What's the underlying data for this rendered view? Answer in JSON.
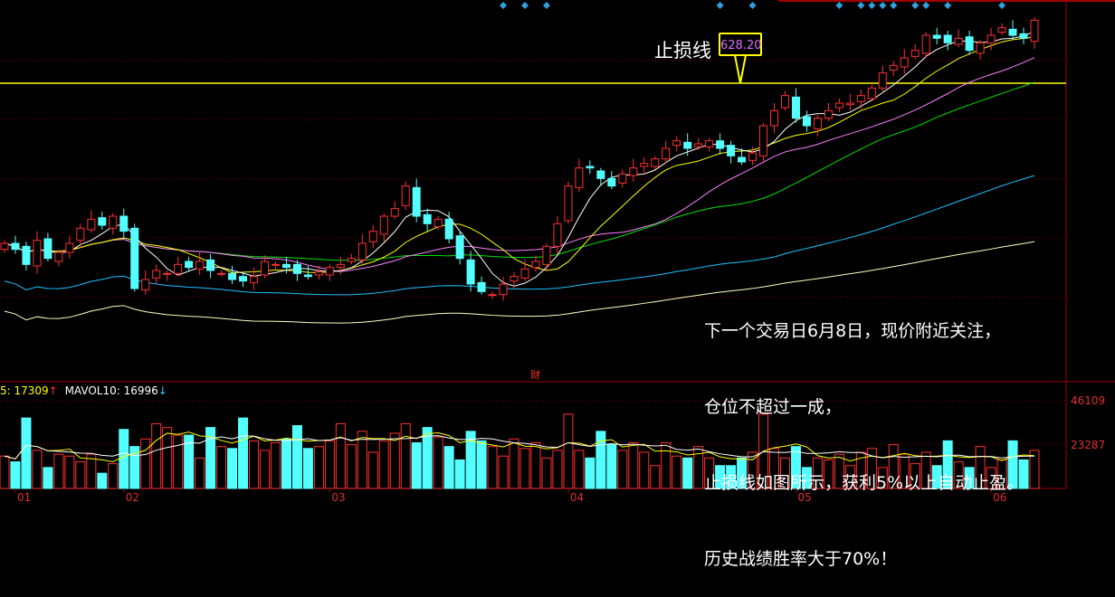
{
  "chart_data": {
    "type": "candlestick",
    "stop_loss": {
      "label": "止损线",
      "value": "628.20",
      "price": 628.2
    },
    "closes": [
      522,
      518,
      508,
      524,
      512,
      516,
      522,
      532,
      538,
      534,
      540,
      530,
      492,
      498,
      504,
      502,
      508,
      506,
      510,
      504,
      502,
      498,
      497,
      500,
      510,
      508,
      506,
      502,
      500,
      503,
      506,
      508,
      512,
      522,
      530,
      540,
      545,
      560,
      540,
      535,
      538,
      525,
      512,
      495,
      490,
      488,
      495,
      500,
      505,
      510,
      520,
      535,
      560,
      572,
      572,
      565,
      560,
      568,
      572,
      575,
      578,
      585,
      590,
      585,
      588,
      590,
      585,
      580,
      576,
      582,
      600,
      610,
      620,
      605,
      600,
      605,
      610,
      615,
      615,
      620,
      625,
      635,
      640,
      645,
      650,
      660,
      658,
      655,
      658,
      650,
      655,
      660,
      665,
      660,
      658,
      670
    ],
    "volumes": [
      17000,
      14000,
      37000,
      20000,
      11000,
      18000,
      17000,
      14000,
      18000,
      8000,
      13000,
      31000,
      22000,
      26000,
      34000,
      32000,
      28000,
      28000,
      16000,
      32000,
      22000,
      21000,
      37000,
      25000,
      20000,
      24000,
      26000,
      33000,
      21000,
      22000,
      25000,
      34000,
      23000,
      30000,
      19000,
      25000,
      29000,
      34000,
      24000,
      32000,
      27000,
      22000,
      15000,
      30000,
      25000,
      22000,
      17000,
      26000,
      21000,
      24000,
      16000,
      20000,
      39000,
      20000,
      16000,
      30000,
      23000,
      20000,
      24000,
      19000,
      12000,
      24000,
      17000,
      16000,
      22000,
      16000,
      12000,
      12000,
      16000,
      19000,
      39000,
      21000,
      16000,
      22000,
      11000,
      16000,
      15000,
      18000,
      12000,
      19000,
      21000,
      11000,
      23000,
      18000,
      13000,
      19000,
      12000,
      25000,
      14000,
      11000,
      22000,
      11000,
      15000,
      25000,
      15000,
      20000
    ],
    "signal_indices": [
      46,
      48,
      50,
      66,
      69,
      77,
      79,
      80,
      81,
      82,
      84,
      85,
      87,
      92
    ],
    "volume_axis": [
      "46109",
      "23287"
    ],
    "volume_ticks": [
      46109,
      23287
    ],
    "date_labels": [
      {
        "label": "01",
        "index": 1
      },
      {
        "label": "02",
        "index": 11
      },
      {
        "label": "03",
        "index": 30
      },
      {
        "label": "04",
        "index": 52
      },
      {
        "label": "05",
        "index": 73
      },
      {
        "label": "06",
        "index": 91
      }
    ],
    "finance_marker": {
      "label": "财",
      "index": 49
    },
    "ma_colors": {
      "ma5": "#ffffff",
      "ma10": "#ffff00",
      "ma20": "#ff80ff",
      "ma30": "#00e000",
      "ma60": "#20c0ff",
      "ma120": "#ffffc0"
    },
    "up_color": "#ff3030",
    "down_color": "#54ffff"
  },
  "volume_legend": {
    "mavol5": "5: 17309",
    "mavol5_arrow": "↑",
    "mavol10": "MAVOL10: 16996",
    "mavol10_arrow": "↓"
  },
  "note": {
    "lines": [
      "下一个交易日6月8日，现价附近关注，",
      "仓位不超过一成，",
      "止损线如图所示，获利5%以上自动止盈。",
      "历史战绩胜率大于70%！"
    ]
  }
}
